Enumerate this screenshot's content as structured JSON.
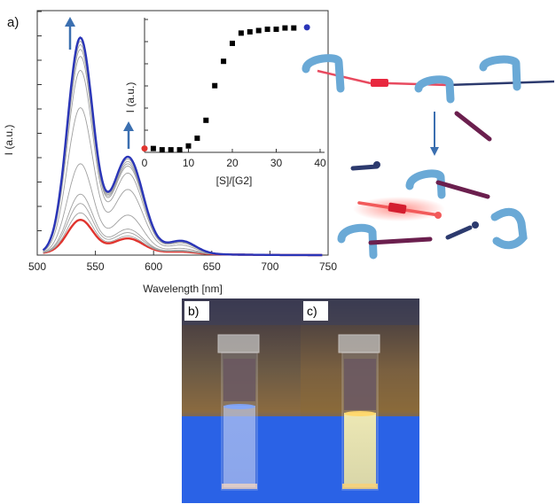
{
  "panels": {
    "a": "a)",
    "b": "b)",
    "c": "c)"
  },
  "chart_data": [
    {
      "type": "line",
      "xlabel": "Wavelength [nm]",
      "ylabel": "I (a.u.)",
      "xlim": [
        500,
        750
      ],
      "xticks": [
        500,
        550,
        600,
        650,
        700,
        750
      ],
      "ylim": [
        0,
        1.05
      ],
      "series": [
        {
          "role": "initial",
          "color": "#e0342e",
          "peak1": 0.14,
          "peak2": 0.06,
          "shoulder": 0.008
        },
        {
          "role": "intermediate",
          "color": "#a0a0a0",
          "peak1": 0.17,
          "peak2": 0.07,
          "shoulder": 0.01
        },
        {
          "role": "intermediate",
          "color": "#a0a0a0",
          "peak1": 0.21,
          "peak2": 0.085,
          "shoulder": 0.012
        },
        {
          "role": "intermediate",
          "color": "#a0a0a0",
          "peak1": 0.25,
          "peak2": 0.1,
          "shoulder": 0.014
        },
        {
          "role": "intermediate",
          "color": "#a0a0a0",
          "peak1": 0.38,
          "peak2": 0.16,
          "shoulder": 0.022
        },
        {
          "role": "intermediate",
          "color": "#a0a0a0",
          "peak1": 0.62,
          "peak2": 0.27,
          "shoulder": 0.036
        },
        {
          "role": "intermediate",
          "color": "#a0a0a0",
          "peak1": 0.78,
          "peak2": 0.34,
          "shoulder": 0.045
        },
        {
          "role": "intermediate",
          "color": "#a0a0a0",
          "peak1": 0.84,
          "peak2": 0.37,
          "shoulder": 0.049
        },
        {
          "role": "intermediate",
          "color": "#a0a0a0",
          "peak1": 0.87,
          "peak2": 0.38,
          "shoulder": 0.051
        },
        {
          "role": "intermediate",
          "color": "#a0a0a0",
          "peak1": 0.89,
          "peak2": 0.39,
          "shoulder": 0.052
        },
        {
          "role": "intermediate",
          "color": "#a0a0a0",
          "peak1": 0.905,
          "peak2": 0.4,
          "shoulder": 0.053
        },
        {
          "role": "final",
          "color": "#2a35b8",
          "peak1": 0.92,
          "peak2": 0.41,
          "shoulder": 0.054
        }
      ],
      "arrows": "up"
    },
    {
      "type": "scatter",
      "inset": true,
      "xlabel": "[S]/[G2]",
      "ylabel": "I (a.u.)",
      "xlim": [
        0,
        40
      ],
      "xticks": [
        0,
        10,
        20,
        30,
        40
      ],
      "ylim": [
        0,
        1.05
      ],
      "points": [
        {
          "x": 0,
          "y": 0.03,
          "color": "#e0342e"
        },
        {
          "x": 2,
          "y": 0.03,
          "color": "#000000"
        },
        {
          "x": 4,
          "y": 0.02,
          "color": "#000000"
        },
        {
          "x": 6,
          "y": 0.02,
          "color": "#000000"
        },
        {
          "x": 8,
          "y": 0.02,
          "color": "#000000"
        },
        {
          "x": 10,
          "y": 0.05,
          "color": "#000000"
        },
        {
          "x": 12,
          "y": 0.11,
          "color": "#000000"
        },
        {
          "x": 14,
          "y": 0.25,
          "color": "#000000"
        },
        {
          "x": 16,
          "y": 0.52,
          "color": "#000000"
        },
        {
          "x": 18,
          "y": 0.71,
          "color": "#000000"
        },
        {
          "x": 20,
          "y": 0.85,
          "color": "#000000"
        },
        {
          "x": 22,
          "y": 0.93,
          "color": "#000000"
        },
        {
          "x": 24,
          "y": 0.94,
          "color": "#000000"
        },
        {
          "x": 26,
          "y": 0.95,
          "color": "#000000"
        },
        {
          "x": 28,
          "y": 0.96,
          "color": "#000000"
        },
        {
          "x": 30,
          "y": 0.96,
          "color": "#000000"
        },
        {
          "x": 32,
          "y": 0.97,
          "color": "#000000"
        },
        {
          "x": 34,
          "y": 0.97,
          "color": "#000000"
        },
        {
          "x": 37,
          "y": 0.975,
          "color": "#2a35b8"
        }
      ]
    }
  ]
}
